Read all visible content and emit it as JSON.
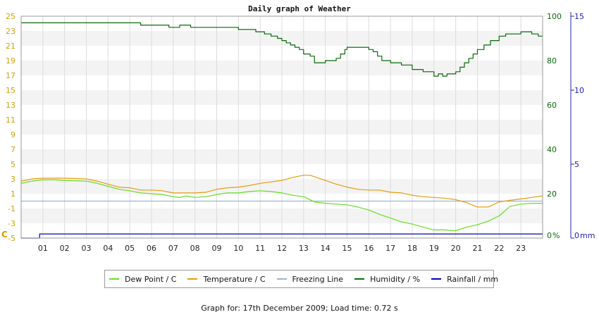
{
  "chart_data": {
    "type": "line",
    "title": "Daily graph of Weather",
    "x_categories": [
      "01",
      "02",
      "03",
      "04",
      "05",
      "06",
      "07",
      "08",
      "09",
      "10",
      "11",
      "12",
      "13",
      "14",
      "15",
      "16",
      "17",
      "18",
      "19",
      "20",
      "21",
      "22",
      "23"
    ],
    "x_range_hours": [
      0,
      24
    ],
    "left_axis": {
      "label": "C",
      "ticks": [
        -5,
        -3,
        -1,
        1,
        3,
        5,
        7,
        9,
        11,
        13,
        15,
        17,
        19,
        21,
        23,
        25
      ],
      "range": [
        -5,
        25
      ],
      "color": "#d4a000"
    },
    "humidity_axis": {
      "label": "%",
      "ticks": [
        0,
        20,
        40,
        60,
        80,
        100
      ],
      "range": [
        0,
        100
      ],
      "color": "#0a6a0a"
    },
    "rain_axis": {
      "label": "mm",
      "ticks": [
        0,
        5,
        10,
        15
      ],
      "range": [
        0,
        15
      ],
      "color": "#2020aa"
    },
    "grid": true,
    "series": [
      {
        "name": "Dew Point / C",
        "color": "#66dd22",
        "axis": "temp",
        "points": [
          [
            0,
            2.4
          ],
          [
            0.5,
            2.7
          ],
          [
            1,
            2.9
          ],
          [
            1.5,
            2.9
          ],
          [
            2,
            2.8
          ],
          [
            3,
            2.7
          ],
          [
            3.5,
            2.4
          ],
          [
            4,
            2.0
          ],
          [
            4.5,
            1.6
          ],
          [
            5,
            1.4
          ],
          [
            5.5,
            1.1
          ],
          [
            6,
            1.0
          ],
          [
            6.5,
            0.9
          ],
          [
            7,
            0.6
          ],
          [
            7.3,
            0.5
          ],
          [
            7.6,
            0.7
          ],
          [
            8,
            0.5
          ],
          [
            8.5,
            0.6
          ],
          [
            9,
            0.9
          ],
          [
            9.5,
            1.1
          ],
          [
            10,
            1.1
          ],
          [
            10.5,
            1.3
          ],
          [
            11,
            1.4
          ],
          [
            11.5,
            1.3
          ],
          [
            12,
            1.1
          ],
          [
            12.5,
            0.8
          ],
          [
            13,
            0.6
          ],
          [
            13.5,
            -0.1
          ],
          [
            14,
            -0.3
          ],
          [
            14.5,
            -0.4
          ],
          [
            15,
            -0.5
          ],
          [
            15.5,
            -0.8
          ],
          [
            16,
            -1.2
          ],
          [
            16.5,
            -1.8
          ],
          [
            17,
            -2.3
          ],
          [
            17.5,
            -2.8
          ],
          [
            18,
            -3.1
          ],
          [
            18.5,
            -3.5
          ],
          [
            19,
            -3.9
          ],
          [
            19.5,
            -3.9
          ],
          [
            20,
            -4.0
          ],
          [
            20.5,
            -3.5
          ],
          [
            21,
            -3.2
          ],
          [
            21.5,
            -2.7
          ],
          [
            22,
            -2.0
          ],
          [
            22.5,
            -0.7
          ],
          [
            23,
            -0.4
          ],
          [
            23.5,
            -0.3
          ],
          [
            24,
            -0.3
          ]
        ]
      },
      {
        "name": "Temperature / C",
        "color": "#e89a10",
        "axis": "temp",
        "points": [
          [
            0,
            2.7
          ],
          [
            0.5,
            3.0
          ],
          [
            1,
            3.1
          ],
          [
            1.5,
            3.1
          ],
          [
            2,
            3.1
          ],
          [
            3,
            3.0
          ],
          [
            3.5,
            2.7
          ],
          [
            4,
            2.3
          ],
          [
            4.5,
            1.9
          ],
          [
            5,
            1.8
          ],
          [
            5.5,
            1.5
          ],
          [
            6,
            1.5
          ],
          [
            6.5,
            1.4
          ],
          [
            7,
            1.1
          ],
          [
            7.5,
            1.1
          ],
          [
            8,
            1.1
          ],
          [
            8.5,
            1.2
          ],
          [
            9,
            1.6
          ],
          [
            9.5,
            1.8
          ],
          [
            10,
            1.9
          ],
          [
            10.5,
            2.1
          ],
          [
            11,
            2.4
          ],
          [
            11.5,
            2.6
          ],
          [
            12,
            2.8
          ],
          [
            12.5,
            3.2
          ],
          [
            13,
            3.5
          ],
          [
            13.3,
            3.5
          ],
          [
            13.6,
            3.2
          ],
          [
            14,
            2.8
          ],
          [
            14.5,
            2.3
          ],
          [
            15,
            1.9
          ],
          [
            15.5,
            1.6
          ],
          [
            16,
            1.5
          ],
          [
            16.5,
            1.5
          ],
          [
            17,
            1.2
          ],
          [
            17.5,
            1.1
          ],
          [
            18,
            0.8
          ],
          [
            18.5,
            0.6
          ],
          [
            19,
            0.5
          ],
          [
            19.5,
            0.4
          ],
          [
            20,
            0.2
          ],
          [
            20.5,
            -0.2
          ],
          [
            21,
            -0.8
          ],
          [
            21.5,
            -0.8
          ],
          [
            22,
            -0.1
          ],
          [
            22.5,
            0.1
          ],
          [
            23,
            0.3
          ],
          [
            23.5,
            0.5
          ],
          [
            24,
            0.7
          ]
        ]
      },
      {
        "name": "Freezing Line",
        "color": "#9ab5d0",
        "axis": "temp",
        "points": [
          [
            0,
            0
          ],
          [
            24,
            0
          ]
        ]
      },
      {
        "name": "Humidity / %",
        "color": "#0a6a0a",
        "axis": "humidity",
        "step": true,
        "points": [
          [
            0,
            97
          ],
          [
            5.5,
            97
          ],
          [
            5.5,
            96
          ],
          [
            6.8,
            96
          ],
          [
            6.8,
            95
          ],
          [
            7.3,
            95
          ],
          [
            7.3,
            96
          ],
          [
            7.8,
            96
          ],
          [
            7.8,
            95
          ],
          [
            10,
            95
          ],
          [
            10,
            94
          ],
          [
            10.8,
            94
          ],
          [
            10.8,
            93
          ],
          [
            11.2,
            93
          ],
          [
            11.2,
            92
          ],
          [
            11.5,
            92
          ],
          [
            11.5,
            91
          ],
          [
            11.8,
            91
          ],
          [
            11.8,
            90
          ],
          [
            12,
            90
          ],
          [
            12,
            89
          ],
          [
            12.2,
            89
          ],
          [
            12.2,
            88
          ],
          [
            12.4,
            88
          ],
          [
            12.4,
            87
          ],
          [
            12.6,
            87
          ],
          [
            12.6,
            86
          ],
          [
            12.8,
            86
          ],
          [
            12.8,
            85
          ],
          [
            13,
            85
          ],
          [
            13,
            83
          ],
          [
            13.3,
            83
          ],
          [
            13.3,
            82
          ],
          [
            13.5,
            82
          ],
          [
            13.5,
            79
          ],
          [
            14,
            79
          ],
          [
            14,
            80
          ],
          [
            14.5,
            80
          ],
          [
            14.5,
            81
          ],
          [
            14.7,
            81
          ],
          [
            14.7,
            83
          ],
          [
            14.9,
            83
          ],
          [
            14.9,
            85
          ],
          [
            15,
            85
          ],
          [
            15,
            86
          ],
          [
            16,
            86
          ],
          [
            16,
            85
          ],
          [
            16.2,
            85
          ],
          [
            16.2,
            84
          ],
          [
            16.4,
            84
          ],
          [
            16.4,
            82
          ],
          [
            16.6,
            82
          ],
          [
            16.6,
            80
          ],
          [
            17,
            80
          ],
          [
            17,
            79
          ],
          [
            17.5,
            79
          ],
          [
            17.5,
            78
          ],
          [
            18,
            78
          ],
          [
            18,
            76
          ],
          [
            18.5,
            76
          ],
          [
            18.5,
            75
          ],
          [
            19,
            75
          ],
          [
            19,
            73
          ],
          [
            19.2,
            73
          ],
          [
            19.2,
            74
          ],
          [
            19.4,
            74
          ],
          [
            19.4,
            73
          ],
          [
            19.6,
            73
          ],
          [
            19.6,
            74
          ],
          [
            19.8,
            74
          ],
          [
            20,
            74
          ],
          [
            20,
            75
          ],
          [
            20.2,
            75
          ],
          [
            20.2,
            77
          ],
          [
            20.4,
            77
          ],
          [
            20.4,
            79
          ],
          [
            20.6,
            79
          ],
          [
            20.6,
            81
          ],
          [
            20.8,
            81
          ],
          [
            20.8,
            83
          ],
          [
            21,
            83
          ],
          [
            21,
            85
          ],
          [
            21.3,
            85
          ],
          [
            21.3,
            87
          ],
          [
            21.6,
            87
          ],
          [
            21.6,
            89
          ],
          [
            22,
            89
          ],
          [
            22,
            91
          ],
          [
            22.3,
            91
          ],
          [
            22.3,
            92
          ],
          [
            23,
            92
          ],
          [
            23,
            93
          ],
          [
            23.5,
            93
          ],
          [
            23.5,
            92
          ],
          [
            23.8,
            92
          ],
          [
            23.8,
            91
          ],
          [
            24,
            91
          ]
        ]
      },
      {
        "name": "Rainfall / mm",
        "color": "#0000bb",
        "axis": "rain",
        "step": true,
        "points": [
          [
            0,
            0
          ],
          [
            0.85,
            0
          ],
          [
            0.85,
            0.28
          ],
          [
            24,
            0.28
          ]
        ]
      }
    ]
  },
  "footer": "Graph for: 17th December 2009; Load time: 0.72 s"
}
